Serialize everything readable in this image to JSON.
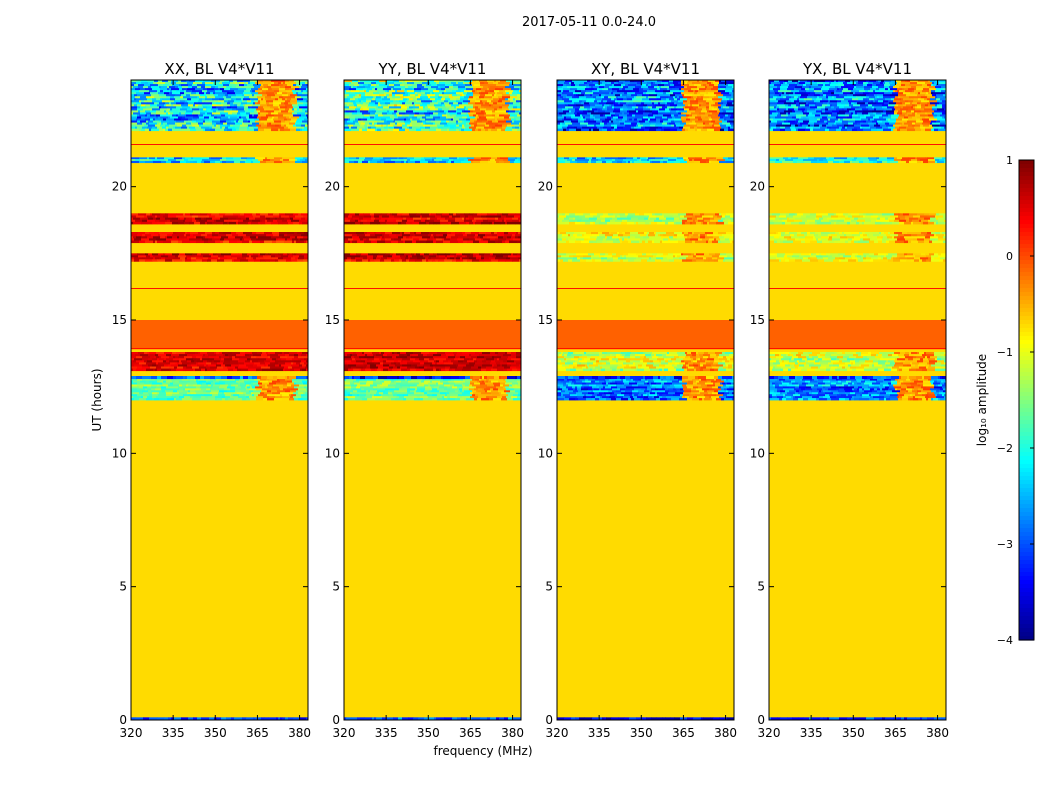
{
  "figure_title": "2017-05-11 0.0-24.0",
  "shared_ylabel": "UT (hours)",
  "shared_xlabel": "frequency (MHz)",
  "colorbar": {
    "label": "log₁₀ amplitude",
    "range": [
      -4,
      1
    ],
    "ticks": [
      1,
      0,
      -1,
      -2,
      -3,
      -4
    ],
    "tick_labels": [
      "1",
      "0",
      "−1",
      "−2",
      "−3",
      "−4"
    ],
    "colormap": "jet"
  },
  "chart_data": [
    {
      "type": "heatmap",
      "title": "XX, BL V4*V11",
      "xlabel": "frequency (MHz)",
      "ylabel": "UT (hours)",
      "xlim": [
        320,
        383
      ],
      "ylim": [
        0,
        24
      ],
      "xticks": [
        320,
        335,
        350,
        365,
        380
      ],
      "yticks": [
        0,
        5,
        10,
        15,
        20
      ],
      "background_value": -0.7,
      "bands": [
        {
          "from": 0,
          "to": 0.1,
          "value": -3.2,
          "noise": 0.5
        },
        {
          "from": 12.0,
          "to": 12.8,
          "value": -1.6,
          "noise": 0.4
        },
        {
          "from": 12.8,
          "to": 12.9,
          "value": -3.0,
          "noise": 0.6
        },
        {
          "from": 13.1,
          "to": 13.8,
          "value": 0.6,
          "noise": 0.35
        },
        {
          "from": 13.9,
          "to": 15.0,
          "value": -0.1,
          "noise": 0.0
        },
        {
          "from": 17.2,
          "to": 17.5,
          "value": 0.6,
          "noise": 0.4
        },
        {
          "from": 17.9,
          "to": 18.3,
          "value": 0.5,
          "noise": 0.4
        },
        {
          "from": 18.6,
          "to": 19.0,
          "value": 0.5,
          "noise": 0.4
        },
        {
          "from": 20.9,
          "to": 21.1,
          "value": -2.3,
          "noise": 0.6
        },
        {
          "from": 22.1,
          "to": 24.0,
          "value": -2.3,
          "noise": 0.9
        }
      ],
      "rfi_range": [
        364,
        377
      ]
    },
    {
      "type": "heatmap",
      "title": "YY, BL V4*V11",
      "xlabel": "frequency (MHz)",
      "ylabel": "UT (hours)",
      "xlim": [
        320,
        383
      ],
      "ylim": [
        0,
        24
      ],
      "xticks": [
        320,
        335,
        350,
        365,
        380
      ],
      "yticks": [
        0,
        5,
        10,
        15,
        20
      ],
      "background_value": -0.7,
      "bands": [
        {
          "from": 0,
          "to": 0.1,
          "value": -3.2,
          "noise": 0.5
        },
        {
          "from": 12.0,
          "to": 12.8,
          "value": -1.6,
          "noise": 0.4
        },
        {
          "from": 12.8,
          "to": 12.9,
          "value": -3.0,
          "noise": 0.6
        },
        {
          "from": 13.1,
          "to": 13.8,
          "value": 0.6,
          "noise": 0.35
        },
        {
          "from": 13.9,
          "to": 15.0,
          "value": -0.1,
          "noise": 0.0
        },
        {
          "from": 17.2,
          "to": 17.5,
          "value": 0.6,
          "noise": 0.4
        },
        {
          "from": 17.9,
          "to": 18.3,
          "value": 0.5,
          "noise": 0.4
        },
        {
          "from": 18.6,
          "to": 19.0,
          "value": 0.5,
          "noise": 0.4
        },
        {
          "from": 20.9,
          "to": 21.1,
          "value": -2.3,
          "noise": 0.6
        },
        {
          "from": 22.1,
          "to": 24.0,
          "value": -1.9,
          "noise": 0.9
        }
      ],
      "rfi_range": [
        364,
        377
      ]
    },
    {
      "type": "heatmap",
      "title": "XY, BL V4*V11",
      "xlabel": "frequency (MHz)",
      "ylabel": "UT (hours)",
      "xlim": [
        320,
        383
      ],
      "ylim": [
        0,
        24
      ],
      "xticks": [
        320,
        335,
        350,
        365,
        380
      ],
      "yticks": [
        0,
        5,
        10,
        15,
        20
      ],
      "background_value": -0.7,
      "bands": [
        {
          "from": 0,
          "to": 0.1,
          "value": -3.2,
          "noise": 0.5
        },
        {
          "from": 12.0,
          "to": 12.8,
          "value": -2.8,
          "noise": 0.6
        },
        {
          "from": 12.8,
          "to": 12.9,
          "value": -3.0,
          "noise": 0.6
        },
        {
          "from": 13.1,
          "to": 13.8,
          "value": -1.2,
          "noise": 0.5
        },
        {
          "from": 13.9,
          "to": 15.0,
          "value": -0.1,
          "noise": 0.0
        },
        {
          "from": 17.2,
          "to": 17.5,
          "value": -1.1,
          "noise": 0.4
        },
        {
          "from": 17.9,
          "to": 18.3,
          "value": -1.0,
          "noise": 0.4
        },
        {
          "from": 18.6,
          "to": 19.0,
          "value": -1.2,
          "noise": 0.4
        },
        {
          "from": 20.9,
          "to": 21.1,
          "value": -2.3,
          "noise": 0.6
        },
        {
          "from": 22.1,
          "to": 24.0,
          "value": -2.8,
          "noise": 0.8
        }
      ],
      "rfi_range": [
        364,
        377
      ]
    },
    {
      "type": "heatmap",
      "title": "YX, BL V4*V11",
      "xlabel": "frequency (MHz)",
      "ylabel": "UT (hours)",
      "xlim": [
        320,
        383
      ],
      "ylim": [
        0,
        24
      ],
      "xticks": [
        320,
        335,
        350,
        365,
        380
      ],
      "yticks": [
        0,
        5,
        10,
        15,
        20
      ],
      "background_value": -0.7,
      "bands": [
        {
          "from": 0,
          "to": 0.1,
          "value": -3.2,
          "noise": 0.5
        },
        {
          "from": 12.0,
          "to": 12.8,
          "value": -2.8,
          "noise": 0.6
        },
        {
          "from": 12.8,
          "to": 12.9,
          "value": -3.0,
          "noise": 0.6
        },
        {
          "from": 13.1,
          "to": 13.8,
          "value": -1.2,
          "noise": 0.5
        },
        {
          "from": 13.9,
          "to": 15.0,
          "value": -0.1,
          "noise": 0.0
        },
        {
          "from": 17.2,
          "to": 17.5,
          "value": -1.1,
          "noise": 0.4
        },
        {
          "from": 17.9,
          "to": 18.3,
          "value": -1.0,
          "noise": 0.4
        },
        {
          "from": 18.6,
          "to": 19.0,
          "value": -1.2,
          "noise": 0.4
        },
        {
          "from": 20.9,
          "to": 21.1,
          "value": -2.3,
          "noise": 0.6
        },
        {
          "from": 22.1,
          "to": 24.0,
          "value": -2.8,
          "noise": 0.8
        }
      ],
      "rfi_range": [
        364,
        377
      ]
    }
  ]
}
